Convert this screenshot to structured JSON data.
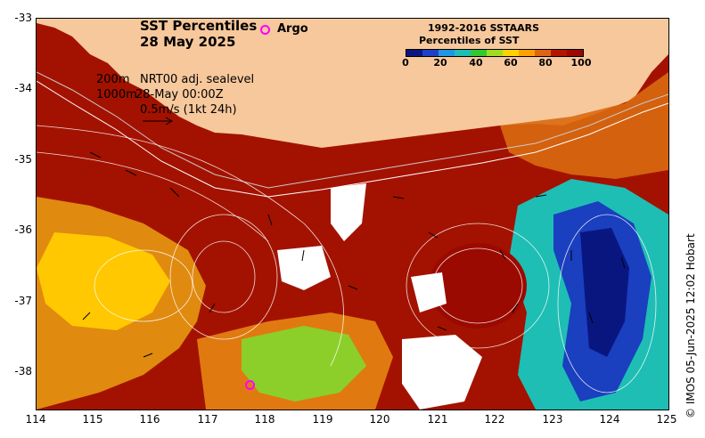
{
  "title": {
    "line1": "SST Percentiles",
    "line2": "28 May 2025"
  },
  "argo": {
    "label": "Argo",
    "color": "#ff00ff"
  },
  "legend": {
    "title1": "1992-2016 SSTAARS",
    "title2": "Percentiles of SST",
    "ticks": [
      "0",
      "20",
      "40",
      "60",
      "80",
      "100"
    ],
    "colors": [
      "#0a1680",
      "#1e40c8",
      "#1e96e6",
      "#1ebeb4",
      "#32c832",
      "#a0dc1e",
      "#ffd200",
      "#ffa000",
      "#e06414",
      "#b41400",
      "#9a0a00"
    ]
  },
  "annotations": {
    "contour1": "200m",
    "contour2": "1000m",
    "model": "NRT00 adj. sealevel",
    "datetime": "28-May 00:00Z",
    "vector_scale": "0.5m/s (1kt 24h)"
  },
  "axes": {
    "y_labels": [
      "-33",
      "-34",
      "-35",
      "-36",
      "-37",
      "-38"
    ],
    "x_labels": [
      "114",
      "115",
      "116",
      "117",
      "118",
      "119",
      "120",
      "121",
      "122",
      "123",
      "124",
      "125"
    ]
  },
  "credit": "© IMOS 05-Jun-2025 12:02 Hobart",
  "colors": {
    "land": "#f7c89c",
    "warm": "#a31200",
    "orange": "#d96a10",
    "cool": "#1a3fbf"
  }
}
